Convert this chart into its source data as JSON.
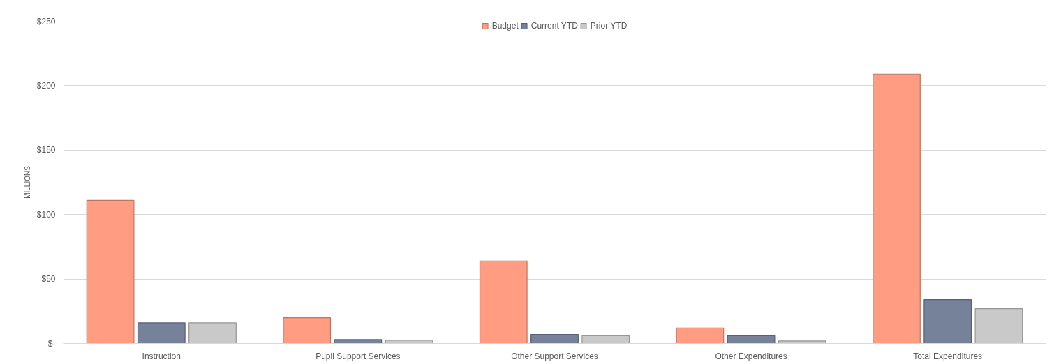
{
  "chart_data": {
    "type": "bar",
    "ylabel": "MILLIONS",
    "categories": [
      "Instruction",
      "Pupil Support Services",
      "Other Support Services",
      "Other Expenditures",
      "Total Expenditures"
    ],
    "series": [
      {
        "name": "Budget",
        "color": "#ff9c82",
        "values": [
          111,
          20,
          64,
          12,
          209
        ]
      },
      {
        "name": "Current YTD",
        "color": "#76819a",
        "values": [
          16,
          3,
          7,
          6,
          34
        ]
      },
      {
        "name": "Prior YTD",
        "color": "#c9c9c9",
        "values": [
          16,
          2.5,
          6,
          2,
          27
        ]
      }
    ],
    "ylim": [
      0,
      250
    ],
    "yticks": [
      {
        "value": 0,
        "label": "$-"
      },
      {
        "value": 50,
        "label": "$50"
      },
      {
        "value": 100,
        "label": "$100"
      },
      {
        "value": 150,
        "label": "$150"
      },
      {
        "value": 200,
        "label": "$200"
      },
      {
        "value": 250,
        "label": "$250"
      }
    ],
    "grid": "y",
    "legend": "top"
  }
}
